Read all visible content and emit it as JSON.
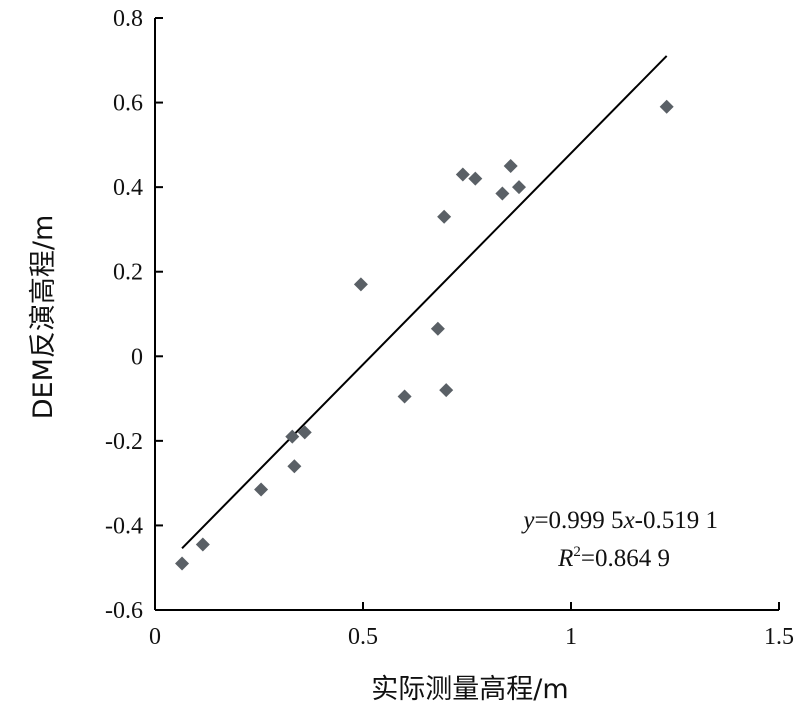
{
  "chart_data": {
    "type": "scatter",
    "xlabel": "实际测量高程/m",
    "ylabel": "DEM反演高程/m",
    "xlim": [
      0,
      1.5
    ],
    "ylim": [
      -0.6,
      0.8
    ],
    "x_ticks": [
      "0",
      "0.5",
      "1",
      "1.5"
    ],
    "y_ticks": [
      "-0.6",
      "-0.4",
      "-0.2",
      "0",
      "0.2",
      "0.4",
      "0.6",
      "0.8"
    ],
    "grid": false,
    "marker_color": "#5a6066",
    "series": [
      {
        "points": [
          [
            0.065,
            -0.49
          ],
          [
            0.115,
            -0.445
          ],
          [
            0.255,
            -0.315
          ],
          [
            0.33,
            -0.19
          ],
          [
            0.335,
            -0.26
          ],
          [
            0.36,
            -0.18
          ],
          [
            0.495,
            0.17
          ],
          [
            0.6,
            -0.095
          ],
          [
            0.68,
            0.065
          ],
          [
            0.695,
            0.33
          ],
          [
            0.7,
            -0.08
          ],
          [
            0.74,
            0.43
          ],
          [
            0.77,
            0.42
          ],
          [
            0.835,
            0.385
          ],
          [
            0.855,
            0.45
          ],
          [
            0.875,
            0.4
          ],
          [
            1.23,
            0.59
          ]
        ]
      }
    ],
    "trendline": {
      "slope": 0.9995,
      "intercept": -0.5191,
      "x_range": [
        0.065,
        1.23
      ]
    },
    "annotation": {
      "eq_prefix": "y",
      "eq_mid": "=0.999 5",
      "eq_var": "x",
      "eq_suffix": "-0.519 1",
      "r2_base": "R",
      "r2_exp": "2",
      "r2_value": "=0.864 9"
    }
  }
}
